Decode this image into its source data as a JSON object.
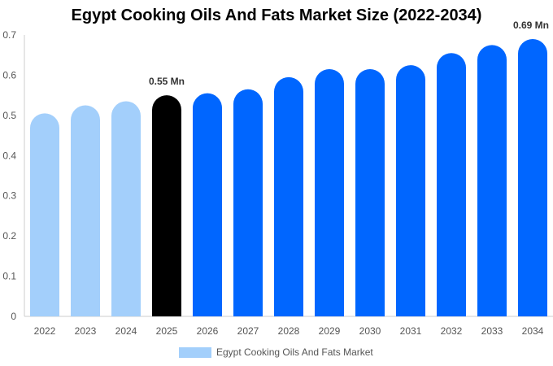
{
  "chart_data": {
    "type": "bar",
    "title": "Egypt Cooking Oils And Fats Market Size (2022-2034)",
    "categories": [
      "2022",
      "2023",
      "2024",
      "2025",
      "2026",
      "2027",
      "2028",
      "2029",
      "2030",
      "2031",
      "2032",
      "2033",
      "2034"
    ],
    "series": [
      {
        "name": "Egypt Cooking Oils And Fats Market",
        "values": [
          0.505,
          0.525,
          0.535,
          0.55,
          0.555,
          0.565,
          0.595,
          0.615,
          0.615,
          0.625,
          0.655,
          0.675,
          0.69
        ]
      }
    ],
    "bar_colors": [
      "#a3cffb",
      "#a3cffb",
      "#a3cffb",
      "#000000",
      "#0066ff",
      "#0066ff",
      "#0066ff",
      "#0066ff",
      "#0066ff",
      "#0066ff",
      "#0066ff",
      "#0066ff",
      "#0066ff"
    ],
    "data_labels": [
      {
        "category": "2025",
        "text": "0.55 Mn"
      },
      {
        "category": "2034",
        "text": "0.69 Mn"
      }
    ],
    "y_ticks": [
      "0",
      "0.1",
      "0.2",
      "0.3",
      "0.4",
      "0.5",
      "0.6",
      "0.7"
    ],
    "ylim": [
      0,
      0.7
    ],
    "grid": false,
    "legend": {
      "position": "bottom",
      "label": "Egypt Cooking Oils And Fats Market",
      "color": "#a3cffb"
    }
  }
}
